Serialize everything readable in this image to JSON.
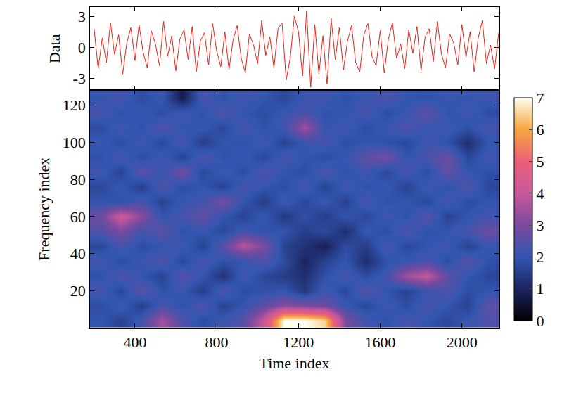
{
  "chart_data": [
    {
      "type": "line",
      "ylabel": "Data",
      "color": "#e0281e",
      "x": [
        200,
        220,
        240,
        260,
        280,
        300,
        320,
        340,
        360,
        380,
        400,
        420,
        440,
        460,
        480,
        500,
        520,
        540,
        560,
        580,
        600,
        620,
        640,
        660,
        680,
        700,
        720,
        740,
        760,
        780,
        800,
        820,
        840,
        860,
        880,
        900,
        920,
        940,
        960,
        980,
        1000,
        1020,
        1040,
        1060,
        1080,
        1100,
        1120,
        1140,
        1160,
        1180,
        1200,
        1220,
        1240,
        1260,
        1280,
        1300,
        1320,
        1340,
        1360,
        1380,
        1400,
        1420,
        1440,
        1460,
        1480,
        1500,
        1520,
        1540,
        1560,
        1580,
        1600,
        1620,
        1640,
        1660,
        1680,
        1700,
        1720,
        1740,
        1760,
        1780,
        1800,
        1820,
        1840,
        1860,
        1880,
        1900,
        1920,
        1940,
        1960,
        1980,
        2000,
        2020,
        2040,
        2060,
        2080,
        2100,
        2120,
        2140,
        2160,
        2180
      ],
      "values": [
        1.8,
        -2.1,
        0.9,
        -1.5,
        2.4,
        -0.7,
        1.2,
        -2.6,
        0.4,
        1.9,
        -1.3,
        2.2,
        -0.5,
        -2.0,
        1.6,
        0.3,
        -1.8,
        2.5,
        -0.9,
        1.1,
        -2.3,
        0.8,
        1.7,
        -1.2,
        2.0,
        -2.4,
        0.6,
        1.4,
        -1.7,
        2.3,
        -0.4,
        -1.9,
        1.5,
        -2.2,
        0.7,
        2.1,
        -1.1,
        -2.5,
        1.3,
        0.2,
        -1.6,
        2.6,
        -0.8,
        1.0,
        -2.0,
        1.8,
        2.4,
        -3.2,
        -1.0,
        3.0,
        1.5,
        -2.8,
        3.5,
        -3.9,
        2.2,
        -2.6,
        1.1,
        -3.6,
        2.8,
        -1.2,
        1.9,
        -2.2,
        0.6,
        2.1,
        -1.5,
        -2.4,
        1.2,
        2.3,
        -0.9,
        -1.8,
        1.6,
        -2.5,
        0.8,
        2.4,
        -1.1,
        0.3,
        -2.1,
        1.7,
        -0.6,
        2.0,
        -2.3,
        1.0,
        1.8,
        -1.4,
        2.5,
        -0.7,
        -2.0,
        1.3,
        0.4,
        -1.7,
        2.2,
        -1.0,
        1.5,
        -2.4,
        0.9,
        2.6,
        -1.6,
        0.2,
        -2.1,
        1.4
      ],
      "xlim": [
        180,
        2180
      ],
      "xticks": [
        400,
        800,
        1200,
        1600,
        2000
      ],
      "ylim": [
        -4.2,
        3.9
      ],
      "yticks": [
        -3,
        0,
        3
      ],
      "tick_labels": "y"
    },
    {
      "type": "heatmap",
      "xlabel": "Time index",
      "ylabel": "Frequency index",
      "x": [
        230,
        330,
        430,
        530,
        630,
        730,
        830,
        930,
        1030,
        1130,
        1230,
        1330,
        1430,
        1530,
        1630,
        1730,
        1830,
        1930,
        2030,
        2130
      ],
      "y": [
        4,
        12,
        20,
        28,
        36,
        44,
        52,
        60,
        68,
        76,
        84,
        92,
        100,
        108,
        116,
        124
      ],
      "cells": [
        [
          2.0,
          1.6,
          2.2,
          3.5,
          2.4,
          1.8,
          2.1,
          2.5,
          4.0,
          7.0,
          7.0,
          6.5,
          3.0,
          2.2,
          1.9,
          2.3,
          2.0,
          1.7,
          2.1,
          2.4
        ],
        [
          1.8,
          2.2,
          1.5,
          2.3,
          1.9,
          2.4,
          1.6,
          2.0,
          2.6,
          3.2,
          3.0,
          2.8,
          2.1,
          1.7,
          2.2,
          1.8,
          2.3,
          2.0,
          1.6,
          2.6
        ],
        [
          2.3,
          1.7,
          2.6,
          1.9,
          2.1,
          1.5,
          2.4,
          1.8,
          1.9,
          2.0,
          1.4,
          2.2,
          1.7,
          2.5,
          2.0,
          1.6,
          2.1,
          2.4,
          1.8,
          2.0
        ],
        [
          1.9,
          2.4,
          2.0,
          1.6,
          2.5,
          2.0,
          1.3,
          2.2,
          1.7,
          1.5,
          1.2,
          1.9,
          2.3,
          1.8,
          2.2,
          3.5,
          4.0,
          2.6,
          2.0,
          1.7
        ],
        [
          2.2,
          1.8,
          2.1,
          2.4,
          1.7,
          2.3,
          1.9,
          2.0,
          2.4,
          1.8,
          1.0,
          1.6,
          2.0,
          1.2,
          1.9,
          2.1,
          2.3,
          1.8,
          2.5,
          1.9
        ],
        [
          1.7,
          2.3,
          1.8,
          2.0,
          2.2,
          1.6,
          2.5,
          3.8,
          3.0,
          1.6,
          1.3,
          0.9,
          1.8,
          1.5,
          2.3,
          1.7,
          2.0,
          2.2,
          1.6,
          2.1
        ],
        [
          2.4,
          3.0,
          2.2,
          2.6,
          1.9,
          2.1,
          1.7,
          2.2,
          1.9,
          2.0,
          1.5,
          1.8,
          1.2,
          2.1,
          1.8,
          2.4,
          1.9,
          2.0,
          2.3,
          2.8
        ],
        [
          2.8,
          4.2,
          3.2,
          2.0,
          2.3,
          2.7,
          2.0,
          1.6,
          2.1,
          1.4,
          1.9,
          1.5,
          2.0,
          1.7,
          2.2,
          1.9,
          2.5,
          1.6,
          2.0,
          2.2
        ],
        [
          2.0,
          1.9,
          2.3,
          1.6,
          2.1,
          2.2,
          2.9,
          2.0,
          1.5,
          2.2,
          1.7,
          2.1,
          1.6,
          2.3,
          1.9,
          2.0,
          1.7,
          2.3,
          1.8,
          2.0
        ],
        [
          1.7,
          2.1,
          1.5,
          2.4,
          1.8,
          2.0,
          1.6,
          2.3,
          2.0,
          1.8,
          2.3,
          1.6,
          2.2,
          1.9,
          2.1,
          1.6,
          2.2,
          1.9,
          2.4,
          1.7
        ],
        [
          2.2,
          1.6,
          2.6,
          2.0,
          2.9,
          1.7,
          2.2,
          1.8,
          2.4,
          2.0,
          1.8,
          2.4,
          1.9,
          2.2,
          1.7,
          2.3,
          1.8,
          2.7,
          2.0,
          1.9
        ],
        [
          1.9,
          2.3,
          1.8,
          2.2,
          1.6,
          2.4,
          1.9,
          2.1,
          1.7,
          2.3,
          2.0,
          1.8,
          2.1,
          2.6,
          2.9,
          2.0,
          2.3,
          2.8,
          1.7,
          2.2
        ],
        [
          2.1,
          1.8,
          2.2,
          1.7,
          2.3,
          1.5,
          2.0,
          1.9,
          2.2,
          1.6,
          2.1,
          2.3,
          1.8,
          2.0,
          1.9,
          1.7,
          2.2,
          1.9,
          1.2,
          2.0
        ],
        [
          1.8,
          2.2,
          1.9,
          2.4,
          2.0,
          2.1,
          1.7,
          2.3,
          1.9,
          2.2,
          3.5,
          2.0,
          2.2,
          1.8,
          2.1,
          2.4,
          2.0,
          2.2,
          1.9,
          2.3
        ],
        [
          2.3,
          1.9,
          2.1,
          1.8,
          2.2,
          1.9,
          2.4,
          2.0,
          1.8,
          2.1,
          2.3,
          1.9,
          2.0,
          2.3,
          1.8,
          2.1,
          2.6,
          1.9,
          2.2,
          1.8
        ],
        [
          2.0,
          2.2,
          1.8,
          2.1,
          0.8,
          2.3,
          1.9,
          2.2,
          2.0,
          1.7,
          2.1,
          2.2,
          1.9,
          2.1,
          2.3,
          2.0,
          1.9,
          2.1,
          2.0,
          2.2
        ]
      ],
      "xlim": [
        180,
        2180
      ],
      "xticks": [
        400,
        800,
        1200,
        1600,
        2000
      ],
      "ylim": [
        0,
        128
      ],
      "yticks": [
        20,
        40,
        60,
        80,
        100,
        120
      ],
      "colorbar_range": [
        0,
        7
      ],
      "colorbar_ticks": [
        0,
        1,
        2,
        3,
        4,
        5,
        6,
        7
      ]
    }
  ]
}
